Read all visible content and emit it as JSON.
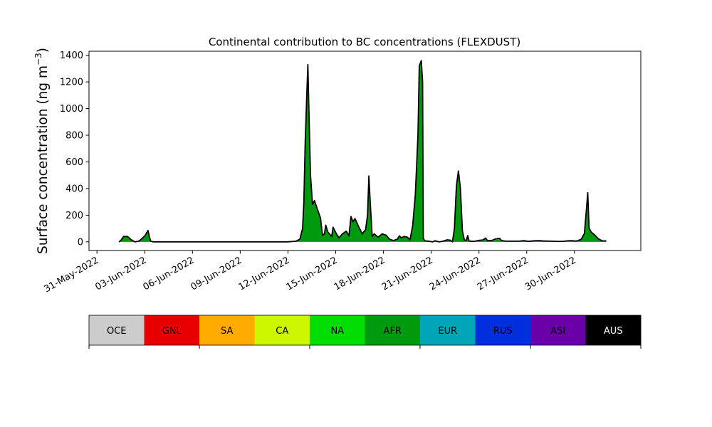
{
  "chart_data": {
    "type": "area",
    "title": "Continental contribution to BC concentrations (FLEXDUST)",
    "ylabel_main": "Surface concentration (ng m",
    "ylabel_sup": "−3",
    "ylabel_close": ")",
    "xlabel": "",
    "ylim": [
      -65,
      1430
    ],
    "yticks": [
      0,
      200,
      400,
      600,
      800,
      1000,
      1200,
      1400
    ],
    "xlim": [
      "2022-05-30T12:00",
      "2022-07-04T04:00"
    ],
    "xticks": [
      "31-May-2022",
      "03-Jun-2022",
      "06-Jun-2022",
      "09-Jun-2022",
      "12-Jun-2022",
      "15-Jun-2022",
      "18-Jun-2022",
      "21-Jun-2022",
      "24-Jun-2022",
      "27-Jun-2022",
      "30-Jun-2022"
    ],
    "grid": false,
    "series": [
      {
        "name": "AFR",
        "color": "#009a0e",
        "points": [
          [
            "2022-06-01T09:00",
            0
          ],
          [
            "2022-06-01T12:00",
            10
          ],
          [
            "2022-06-01T16:00",
            40
          ],
          [
            "2022-06-01T22:00",
            40
          ],
          [
            "2022-06-02T04:00",
            15
          ],
          [
            "2022-06-02T09:00",
            0
          ],
          [
            "2022-06-02T15:00",
            5
          ],
          [
            "2022-06-02T20:00",
            25
          ],
          [
            "2022-06-03T01:00",
            50
          ],
          [
            "2022-06-03T03:00",
            70
          ],
          [
            "2022-06-03T05:00",
            85
          ],
          [
            "2022-06-03T07:00",
            40
          ],
          [
            "2022-06-03T09:00",
            5
          ],
          [
            "2022-06-03T13:00",
            0
          ],
          [
            "2022-06-12T00:00",
            0
          ],
          [
            "2022-06-12T12:00",
            5
          ],
          [
            "2022-06-12T18:00",
            20
          ],
          [
            "2022-06-12T22:00",
            100
          ],
          [
            "2022-06-13T00:00",
            300
          ],
          [
            "2022-06-13T02:00",
            750
          ],
          [
            "2022-06-13T04:00",
            1050
          ],
          [
            "2022-06-13T06:00",
            1330
          ],
          [
            "2022-06-13T08:00",
            900
          ],
          [
            "2022-06-13T10:00",
            500
          ],
          [
            "2022-06-13T13:00",
            280
          ],
          [
            "2022-06-13T16:00",
            310
          ],
          [
            "2022-06-13T20:00",
            250
          ],
          [
            "2022-06-14T01:00",
            180
          ],
          [
            "2022-06-14T04:00",
            50
          ],
          [
            "2022-06-14T07:00",
            60
          ],
          [
            "2022-06-14T09:00",
            125
          ],
          [
            "2022-06-14T12:00",
            75
          ],
          [
            "2022-06-14T18:00",
            40
          ],
          [
            "2022-06-14T20:00",
            110
          ],
          [
            "2022-06-15T01:00",
            60
          ],
          [
            "2022-06-15T05:00",
            30
          ],
          [
            "2022-06-15T10:00",
            60
          ],
          [
            "2022-06-15T16:00",
            80
          ],
          [
            "2022-06-15T20:00",
            45
          ],
          [
            "2022-06-15T23:00",
            190
          ],
          [
            "2022-06-16T02:00",
            150
          ],
          [
            "2022-06-16T05:00",
            175
          ],
          [
            "2022-06-16T10:00",
            120
          ],
          [
            "2022-06-16T16:00",
            60
          ],
          [
            "2022-06-16T21:00",
            90
          ],
          [
            "2022-06-17T00:00",
            200
          ],
          [
            "2022-06-17T02:00",
            495
          ],
          [
            "2022-06-17T04:00",
            300
          ],
          [
            "2022-06-17T07:00",
            40
          ],
          [
            "2022-06-17T10:00",
            60
          ],
          [
            "2022-06-17T16:00",
            35
          ],
          [
            "2022-06-17T22:00",
            60
          ],
          [
            "2022-06-18T04:00",
            50
          ],
          [
            "2022-06-18T09:00",
            20
          ],
          [
            "2022-06-18T15:00",
            10
          ],
          [
            "2022-06-18T21:00",
            20
          ],
          [
            "2022-06-19T00:00",
            45
          ],
          [
            "2022-06-19T03:00",
            30
          ],
          [
            "2022-06-19T07:00",
            40
          ],
          [
            "2022-06-19T12:00",
            35
          ],
          [
            "2022-06-19T16:00",
            15
          ],
          [
            "2022-06-19T20:00",
            120
          ],
          [
            "2022-06-20T00:00",
            350
          ],
          [
            "2022-06-20T04:00",
            800
          ],
          [
            "2022-06-20T06:00",
            1320
          ],
          [
            "2022-06-20T09:00",
            1360
          ],
          [
            "2022-06-20T11:00",
            1200
          ],
          [
            "2022-06-20T12:00",
            30
          ],
          [
            "2022-06-20T14:00",
            8
          ],
          [
            "2022-06-20T20:00",
            5
          ],
          [
            "2022-06-21T02:00",
            0
          ],
          [
            "2022-06-21T06:00",
            8
          ],
          [
            "2022-06-21T12:00",
            0
          ],
          [
            "2022-06-21T18:00",
            5
          ],
          [
            "2022-06-22T00:00",
            15
          ],
          [
            "2022-06-22T05:00",
            12
          ],
          [
            "2022-06-22T08:00",
            0
          ],
          [
            "2022-06-22T11:00",
            100
          ],
          [
            "2022-06-22T14:00",
            420
          ],
          [
            "2022-06-22T17:00",
            530
          ],
          [
            "2022-06-22T20:00",
            400
          ],
          [
            "2022-06-22T23:00",
            80
          ],
          [
            "2022-06-23T02:00",
            10
          ],
          [
            "2022-06-23T05:00",
            10
          ],
          [
            "2022-06-23T07:00",
            45
          ],
          [
            "2022-06-23T09:00",
            5
          ],
          [
            "2022-06-23T16:00",
            0
          ],
          [
            "2022-06-24T00:00",
            5
          ],
          [
            "2022-06-24T06:00",
            10
          ],
          [
            "2022-06-24T10:00",
            25
          ],
          [
            "2022-06-24T13:00",
            5
          ],
          [
            "2022-06-24T20:00",
            5
          ],
          [
            "2022-06-25T02:00",
            15
          ],
          [
            "2022-06-25T07:00",
            20
          ],
          [
            "2022-06-25T10:00",
            5
          ],
          [
            "2022-06-25T16:00",
            0
          ],
          [
            "2022-06-26T12:00",
            0
          ],
          [
            "2022-06-26T20:00",
            5
          ],
          [
            "2022-06-27T04:00",
            0
          ],
          [
            "2022-06-27T20:00",
            5
          ],
          [
            "2022-06-28T12:00",
            0
          ],
          [
            "2022-06-29T08:00",
            0
          ],
          [
            "2022-06-29T18:00",
            5
          ],
          [
            "2022-06-30T03:00",
            3
          ],
          [
            "2022-06-30T10:00",
            15
          ],
          [
            "2022-06-30T15:00",
            60
          ],
          [
            "2022-06-30T18:00",
            240
          ],
          [
            "2022-06-30T20:00",
            365
          ],
          [
            "2022-06-30T22:00",
            100
          ],
          [
            "2022-07-01T01:00",
            70
          ],
          [
            "2022-07-01T06:00",
            50
          ],
          [
            "2022-07-01T12:00",
            20
          ],
          [
            "2022-07-01T18:00",
            5
          ],
          [
            "2022-07-02T00:00",
            5
          ]
        ]
      },
      {
        "name": "EUR",
        "color": "#00a5b8",
        "points": [
          [
            "2022-06-01T09:00",
            0
          ],
          [
            "2022-06-22T08:00",
            0
          ],
          [
            "2022-06-23T00:00",
            3
          ],
          [
            "2022-06-23T12:00",
            2
          ],
          [
            "2022-06-24T00:00",
            6
          ],
          [
            "2022-06-24T12:00",
            3
          ],
          [
            "2022-06-25T00:00",
            8
          ],
          [
            "2022-06-25T12:00",
            5
          ],
          [
            "2022-06-26T12:00",
            5
          ],
          [
            "2022-06-27T00:00",
            3
          ],
          [
            "2022-06-27T12:00",
            6
          ],
          [
            "2022-06-28T00:00",
            3
          ],
          [
            "2022-06-28T12:00",
            5
          ],
          [
            "2022-06-29T00:00",
            3
          ],
          [
            "2022-06-29T12:00",
            5
          ],
          [
            "2022-06-30T00:00",
            3
          ],
          [
            "2022-07-01T00:00",
            4
          ],
          [
            "2022-07-02T00:00",
            2
          ]
        ]
      }
    ],
    "legend": {
      "placement": "bottom",
      "entries": [
        {
          "label": "OCE",
          "color": "#cccccc",
          "text_color": "#000000"
        },
        {
          "label": "GNL",
          "color": "#e80000",
          "text_color": "#000000"
        },
        {
          "label": "SA",
          "color": "#ffab00",
          "text_color": "#000000"
        },
        {
          "label": "CA",
          "color": "#ccf500",
          "text_color": "#000000"
        },
        {
          "label": "NA",
          "color": "#00dd00",
          "text_color": "#000000"
        },
        {
          "label": "AFR",
          "color": "#009a0e",
          "text_color": "#000000"
        },
        {
          "label": "EUR",
          "color": "#00a5b8",
          "text_color": "#000000"
        },
        {
          "label": "RUS",
          "color": "#0030dd",
          "text_color": "#000000"
        },
        {
          "label": "ASI",
          "color": "#6a00a8",
          "text_color": "#000000"
        },
        {
          "label": "AUS",
          "color": "#000000",
          "text_color": "#ffffff"
        }
      ]
    }
  }
}
